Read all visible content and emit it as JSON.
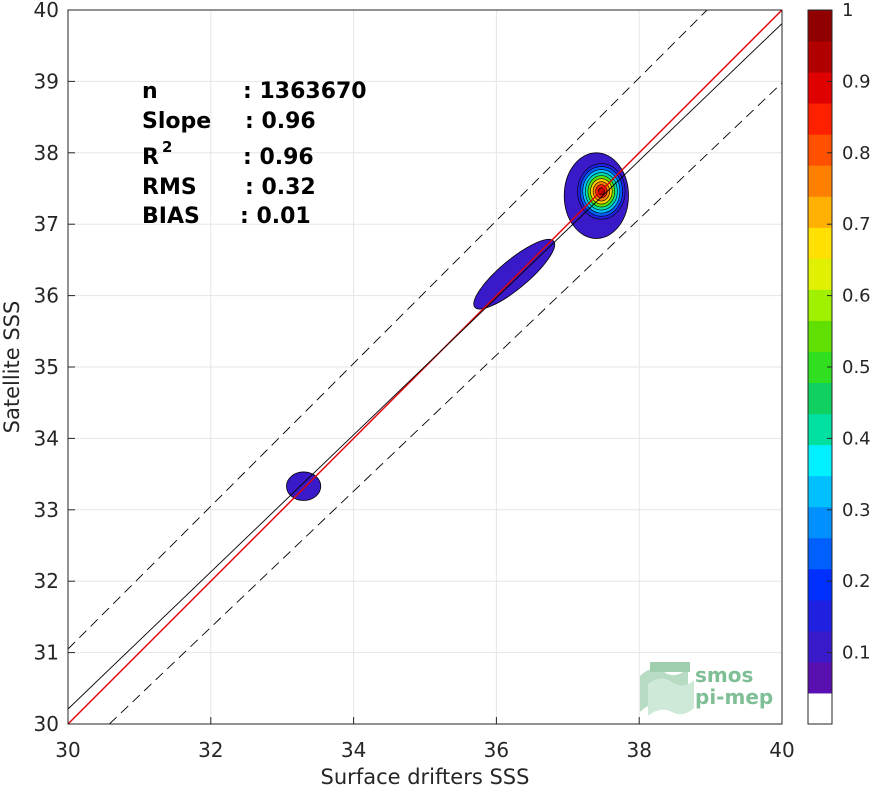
{
  "chart_data": {
    "type": "heatmap",
    "xlabel": "Surface drifters SSS",
    "ylabel": "Satellite SSS",
    "xlim": [
      30,
      40
    ],
    "ylim": [
      30,
      40
    ],
    "xticks": [
      30,
      32,
      34,
      36,
      38,
      40
    ],
    "yticks": [
      30,
      31,
      32,
      33,
      34,
      35,
      36,
      37,
      38,
      39,
      40
    ],
    "grid": true,
    "stats": {
      "n_label": "n",
      "n_value": ": 1363670",
      "slope_label": "Slope",
      "slope_value": ": 0.96",
      "r2_label": "R",
      "r2_sup": "2",
      "r2_value": ": 0.96",
      "rms_label": "RMS",
      "rms_value": ": 0.32",
      "bias_label": "BIAS",
      "bias_value": ": 0.01"
    },
    "lines": [
      {
        "name": "1:1",
        "color": "#e00000",
        "points": [
          [
            30,
            30
          ],
          [
            40,
            40
          ]
        ]
      },
      {
        "name": "regression",
        "color": "#000000",
        "points": [
          [
            30,
            30.21
          ],
          [
            40,
            39.81
          ]
        ]
      },
      {
        "name": "upper bound",
        "color": "#000000",
        "dashed": true,
        "points": [
          [
            30,
            31.05
          ],
          [
            38.95,
            40
          ]
        ]
      },
      {
        "name": "lower bound",
        "color": "#000000",
        "dashed": true,
        "points": [
          [
            30.58,
            30
          ],
          [
            40,
            38.98
          ]
        ]
      }
    ],
    "density_clusters": [
      {
        "x": 33.3,
        "y": 33.33,
        "rx": 0.24,
        "ry": 0.2,
        "peak": 0.1
      },
      {
        "x": 36.25,
        "y": 36.3,
        "rx": 0.72,
        "ry": 0.2,
        "angle_deg": 40,
        "peak": 0.1
      },
      {
        "x": 37.4,
        "y": 37.4,
        "rx": 0.45,
        "ry": 0.6,
        "peak": 1.0,
        "peak_x": 37.47,
        "peak_y": 37.46
      }
    ],
    "colorbar": {
      "range": [
        0,
        1
      ],
      "ticks": [
        0.1,
        0.2,
        0.3,
        0.4,
        0.5,
        0.6,
        0.7,
        0.8,
        0.9,
        1
      ],
      "tick_labels": [
        "0.1",
        "0.2",
        "0.3",
        "0.4",
        "0.5",
        "0.6",
        "0.7",
        "0.8",
        "0.9",
        "1"
      ],
      "colors": [
        "#ffffff",
        "#5a0fb0",
        "#3a1ac8",
        "#2020e0",
        "#0030ff",
        "#0060ff",
        "#0090ff",
        "#00c0ff",
        "#00f0ff",
        "#00e0a0",
        "#10d060",
        "#30e020",
        "#60e000",
        "#a0f000",
        "#e0f000",
        "#ffe000",
        "#ffb000",
        "#ff8000",
        "#ff5000",
        "#ff2000",
        "#e00000",
        "#b00000",
        "#900000"
      ]
    }
  },
  "logo": {
    "line1": "smos",
    "line2": "pi-mep"
  }
}
